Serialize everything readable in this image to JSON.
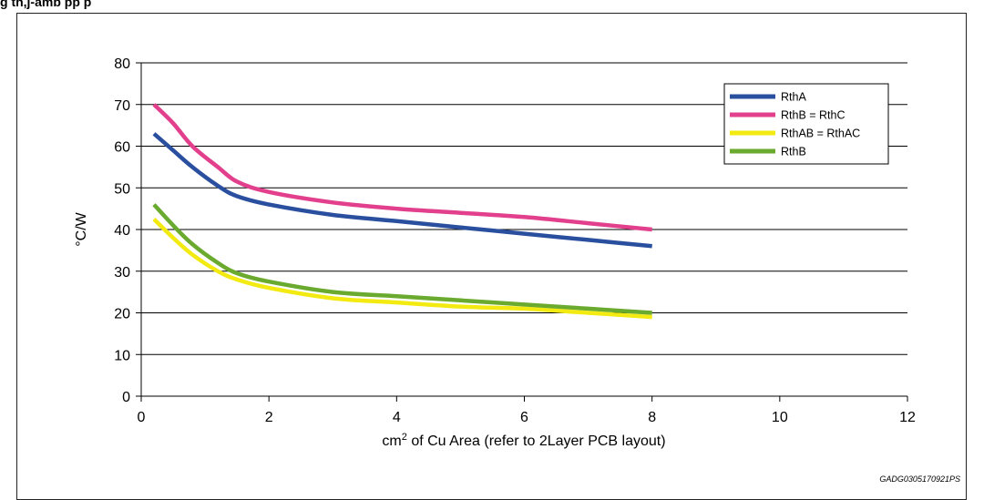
{
  "header": {
    "title_fragment": "g                                      th,j-amb                  pp                  p"
  },
  "figure_id": "GADG0305170921PS",
  "colors": {
    "RthA": "#2a4f9e",
    "RthB_RthC": "#e23f8c",
    "RthAB_RthAC": "#f2ea10",
    "RthB": "#6aaa2e"
  },
  "chart_data": {
    "type": "line",
    "title": "",
    "xlabel": "cm2 of Cu Area (refer to 2Layer PCB layout)",
    "xlabel_base": "cm",
    "xlabel_sup": "2",
    "xlabel_rest": " of Cu Area (refer to 2Layer PCB layout)",
    "ylabel": "°C/W",
    "xlim": [
      0,
      12
    ],
    "ylim": [
      0,
      80
    ],
    "xticks": [
      0,
      2,
      4,
      6,
      8,
      10,
      12
    ],
    "yticks": [
      0,
      10,
      20,
      30,
      40,
      50,
      60,
      70,
      80
    ],
    "grid": "horizontal",
    "legend_position": "top-right",
    "series": [
      {
        "name": "RthA",
        "color": "#2a4f9e",
        "x": [
          0.2,
          0.5,
          0.8,
          1.2,
          1.5,
          2,
          3,
          4,
          5,
          6,
          7,
          8
        ],
        "y": [
          63,
          59,
          55,
          50.5,
          48,
          46,
          43.5,
          42,
          40.5,
          39,
          37.5,
          36
        ]
      },
      {
        "name": "RthB = RthC",
        "color": "#e23f8c",
        "x": [
          0.2,
          0.5,
          0.8,
          1.2,
          1.5,
          2,
          3,
          4,
          5,
          6,
          7,
          8
        ],
        "y": [
          70,
          65.5,
          60,
          55,
          51.5,
          49,
          46.5,
          45,
          44,
          43,
          41.5,
          40
        ]
      },
      {
        "name": "RthAB = RthAC",
        "color": "#f2ea10",
        "x": [
          0.2,
          0.5,
          0.8,
          1.2,
          1.5,
          2,
          3,
          4,
          5,
          6,
          7,
          8
        ],
        "y": [
          42.5,
          38,
          34,
          30,
          28,
          26,
          23.5,
          22.5,
          21.5,
          21,
          20,
          19
        ]
      },
      {
        "name": "RthB",
        "color": "#6aaa2e",
        "x": [
          0.2,
          0.5,
          0.8,
          1.2,
          1.5,
          2,
          3,
          4,
          5,
          6,
          7,
          8
        ],
        "y": [
          46,
          41,
          36.5,
          32,
          29.5,
          27.5,
          25,
          24,
          23,
          22,
          21,
          20
        ]
      }
    ]
  }
}
